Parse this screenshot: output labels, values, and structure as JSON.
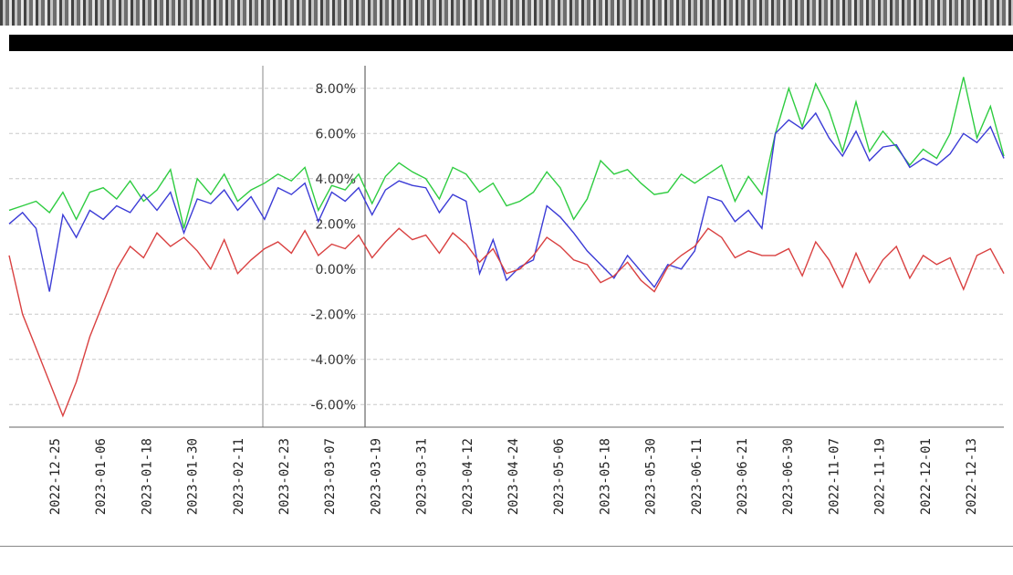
{
  "chart_data": {
    "type": "line",
    "title": "",
    "xlabel": "",
    "ylabel": "",
    "y_tick_labels": [
      "8.00%",
      "6.00%",
      "4.00%",
      "2.00%",
      "0.00%",
      "-2.00%",
      "-4.00%",
      "-6.00%"
    ],
    "ylim": [
      -7,
      9
    ],
    "x_tick_labels": [
      "2022-12-25",
      "2023-01-06",
      "2023-01-18",
      "2023-01-30",
      "2023-02-11",
      "2023-02-23",
      "2023-03-07",
      "2023-03-19",
      "2023-03-31",
      "2023-04-12",
      "2023-04-24",
      "2023-05-06",
      "2023-05-18",
      "2023-05-30",
      "2023-06-11",
      "2023-06-21",
      "2023-06-30",
      "2022-11-07",
      "2022-11-19",
      "2022-12-01",
      "2022-12-13"
    ],
    "grid": true,
    "series": [
      {
        "name": "",
        "color": "#2ecc40",
        "values": [
          2.6,
          2.8,
          3.0,
          2.5,
          3.4,
          2.2,
          3.4,
          3.6,
          3.1,
          3.9,
          3.0,
          3.5,
          4.4,
          1.8,
          4.0,
          3.3,
          4.2,
          3.0,
          3.5,
          3.8,
          4.2,
          3.9,
          4.5,
          2.6,
          3.7,
          3.5,
          4.2,
          2.9,
          4.1,
          4.7,
          4.3,
          4.0,
          3.1,
          4.5,
          4.2,
          3.4,
          3.8,
          2.8,
          3.0,
          3.4,
          4.3,
          3.6,
          2.2,
          3.1,
          4.8,
          4.2,
          4.4,
          3.8,
          3.3,
          3.4,
          4.2,
          3.8,
          4.2,
          4.6,
          3.0,
          4.1,
          3.3,
          6.0,
          8.0,
          6.3,
          8.2,
          7.0,
          5.2,
          7.4,
          5.2,
          6.1,
          5.4,
          4.6,
          5.3,
          4.9,
          6.0,
          8.5,
          5.8,
          7.2,
          5.0
        ]
      },
      {
        "name": "",
        "color": "#3b3bd6",
        "values": [
          2.0,
          2.5,
          1.8,
          -1.0,
          2.4,
          1.4,
          2.6,
          2.2,
          2.8,
          2.5,
          3.3,
          2.6,
          3.4,
          1.6,
          3.1,
          2.9,
          3.5,
          2.6,
          3.2,
          2.2,
          3.6,
          3.3,
          3.8,
          2.1,
          3.4,
          3.0,
          3.6,
          2.4,
          3.5,
          3.9,
          3.7,
          3.6,
          2.5,
          3.3,
          3.0,
          -0.2,
          1.3,
          -0.5,
          0.1,
          0.4,
          2.8,
          2.3,
          1.6,
          0.8,
          0.2,
          -0.4,
          0.6,
          -0.1,
          -0.8,
          0.2,
          0.0,
          0.8,
          3.2,
          3.0,
          2.1,
          2.6,
          1.8,
          6.0,
          6.6,
          6.2,
          6.9,
          5.8,
          5.0,
          6.1,
          4.8,
          5.4,
          5.5,
          4.5,
          4.9,
          4.6,
          5.1,
          6.0,
          5.6,
          6.3,
          4.9
        ]
      },
      {
        "name": "",
        "color": "#d94040",
        "values": [
          0.6,
          -2.0,
          -3.5,
          -5.0,
          -6.5,
          -5.0,
          -3.0,
          -1.5,
          0.0,
          1.0,
          0.5,
          1.6,
          1.0,
          1.4,
          0.8,
          0.0,
          1.3,
          -0.2,
          0.4,
          0.9,
          1.2,
          0.7,
          1.7,
          0.6,
          1.1,
          0.9,
          1.5,
          0.5,
          1.2,
          1.8,
          1.3,
          1.5,
          0.7,
          1.6,
          1.1,
          0.3,
          0.9,
          -0.2,
          0.0,
          0.6,
          1.4,
          1.0,
          0.4,
          0.2,
          -0.6,
          -0.3,
          0.3,
          -0.5,
          -1.0,
          0.1,
          0.6,
          1.0,
          1.8,
          1.4,
          0.5,
          0.8,
          0.6,
          0.6,
          0.9,
          -0.3,
          1.2,
          0.4,
          -0.8,
          0.7,
          -0.6,
          0.4,
          1.0,
          -0.4,
          0.6,
          0.2,
          0.5,
          -0.9,
          0.6,
          0.9,
          -0.2
        ]
      }
    ],
    "legend": []
  },
  "header": {
    "band_label": ""
  }
}
